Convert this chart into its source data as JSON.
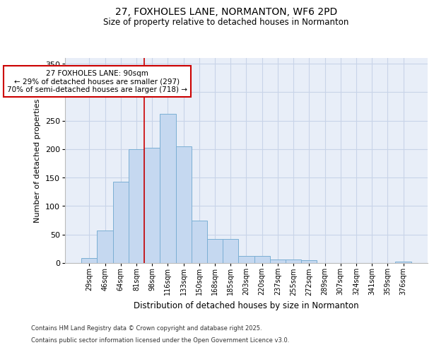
{
  "title_line1": "27, FOXHOLES LANE, NORMANTON, WF6 2PD",
  "title_line2": "Size of property relative to detached houses in Normanton",
  "xlabel": "Distribution of detached houses by size in Normanton",
  "ylabel": "Number of detached properties",
  "categories": [
    "29sqm",
    "46sqm",
    "64sqm",
    "81sqm",
    "98sqm",
    "116sqm",
    "133sqm",
    "150sqm",
    "168sqm",
    "185sqm",
    "203sqm",
    "220sqm",
    "237sqm",
    "255sqm",
    "272sqm",
    "289sqm",
    "307sqm",
    "324sqm",
    "341sqm",
    "359sqm",
    "376sqm"
  ],
  "values": [
    9,
    57,
    143,
    200,
    202,
    262,
    205,
    75,
    42,
    42,
    12,
    13,
    6,
    6,
    5,
    0,
    0,
    0,
    0,
    0,
    3
  ],
  "bar_color": "#c5d8f0",
  "bar_edge_color": "#7bafd4",
  "grid_color": "#c8d4e8",
  "background_color": "#e8eef8",
  "annotation_text_line1": "27 FOXHOLES LANE: 90sqm",
  "annotation_text_line2": "← 29% of detached houses are smaller (297)",
  "annotation_text_line3": "70% of semi-detached houses are larger (718) →",
  "annotation_box_edgecolor": "#cc0000",
  "red_line_color": "#cc0000",
  "red_line_bin_index": 4,
  "ylim": [
    0,
    360
  ],
  "yticks": [
    0,
    50,
    100,
    150,
    200,
    250,
    300,
    350
  ],
  "footer_line1": "Contains HM Land Registry data © Crown copyright and database right 2025.",
  "footer_line2": "Contains public sector information licensed under the Open Government Licence v3.0.",
  "title_fontsize": 10,
  "subtitle_fontsize": 8.5,
  "axis_label_fontsize": 8,
  "tick_fontsize": 7,
  "annotation_fontsize": 7.5,
  "footer_fontsize": 6
}
